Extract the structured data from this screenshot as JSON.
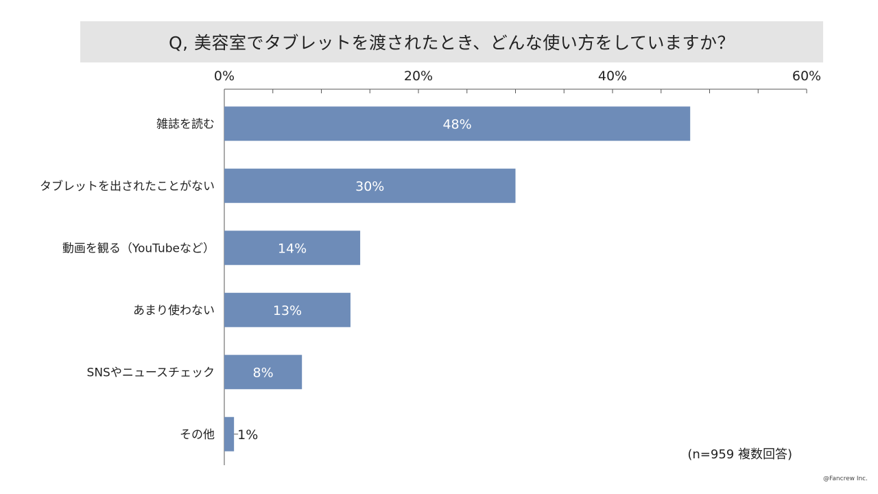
{
  "chart_data": {
    "type": "bar",
    "orientation": "horizontal",
    "title": "Q, 美容室でタブレットを渡されたとき、どんな使い方をしていますか？",
    "categories": [
      "雑誌を読む",
      "タブレットを出されたことがない",
      "動画を観る（YouTubeなど）",
      "あまり使わない",
      "SNSやニュースチェック",
      "その他"
    ],
    "values": [
      48,
      30,
      14,
      13,
      8,
      1
    ],
    "value_labels": [
      "48%",
      "30%",
      "14%",
      "13%",
      "8%",
      "1%"
    ],
    "xlim": [
      0,
      60
    ],
    "x_ticks": [
      "0%",
      "20%",
      "40%",
      "60%"
    ],
    "x_tick_values": [
      0,
      20,
      40,
      60
    ],
    "minor_tick_step": 5,
    "x_axis_position": "top",
    "grid": false,
    "bar_color": "#6e8cb8",
    "note": "(n=959 複数回答)"
  },
  "credit": "@Fancrew Inc."
}
